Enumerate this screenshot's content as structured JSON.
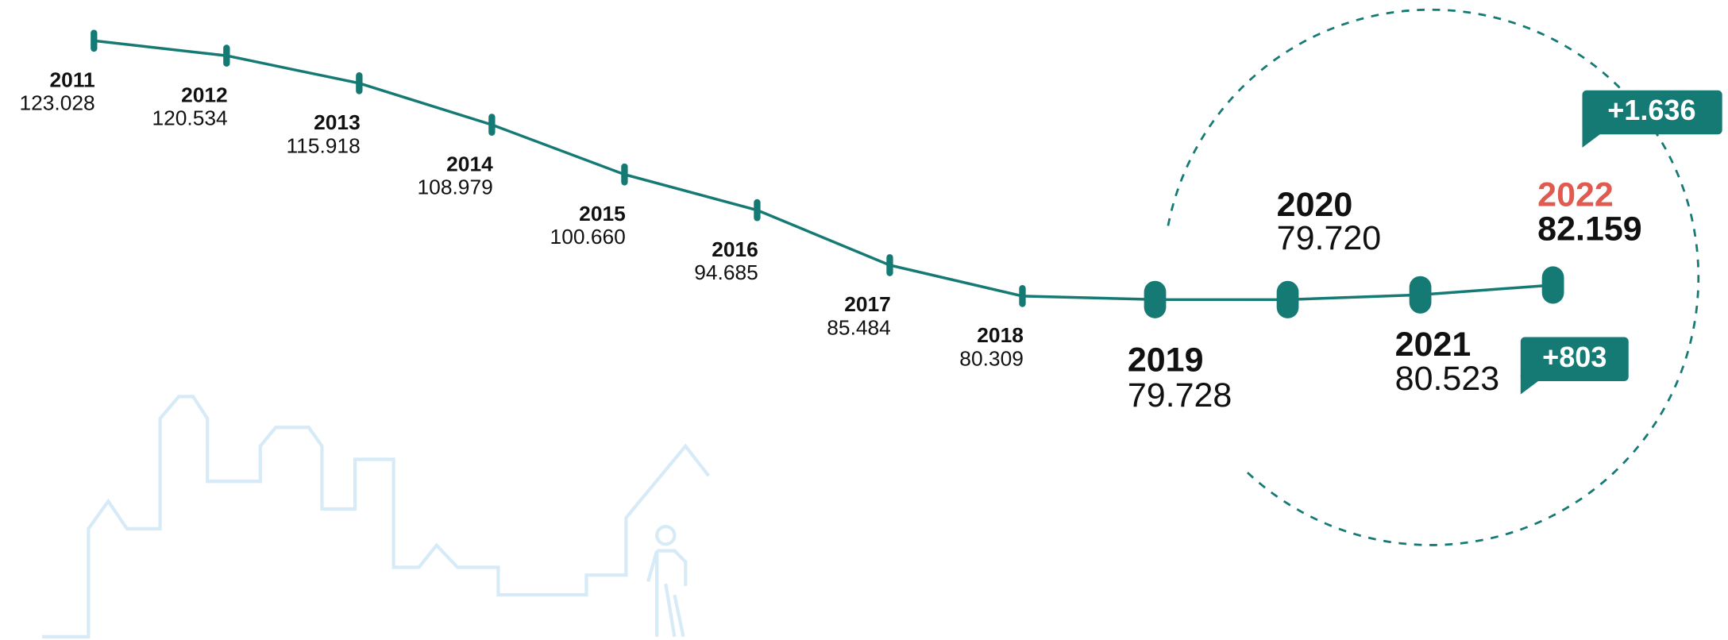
{
  "chart_data": {
    "type": "line",
    "categories": [
      "2011",
      "2012",
      "2013",
      "2014",
      "2015",
      "2016",
      "2017",
      "2018",
      "2019",
      "2020",
      "2021",
      "2022"
    ],
    "values": [
      123028,
      120534,
      115918,
      108979,
      100660,
      94685,
      85484,
      80309,
      79728,
      79720,
      80523,
      82159
    ],
    "value_labels": [
      "123.028",
      "120.534",
      "115.918",
      "108.979",
      "100.660",
      "94.685",
      "85.484",
      "80.309",
      "79.728",
      "79.720",
      "80.523",
      "82.159"
    ],
    "color": "#167a74",
    "highlight_color": "#e05a4f",
    "annotations": [
      "+1.636",
      "+803"
    ]
  }
}
